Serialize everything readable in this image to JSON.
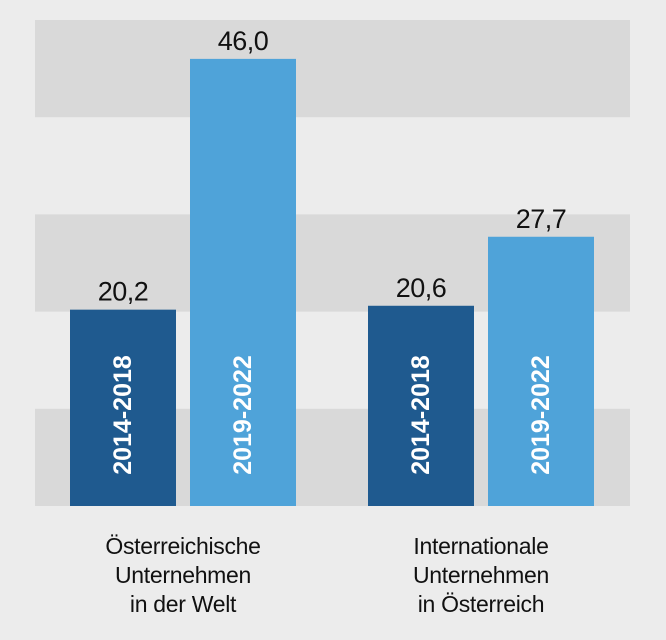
{
  "chart_data": {
    "type": "bar",
    "categories": [
      [
        "Österreichische",
        "Unternehmen",
        "in der Welt"
      ],
      [
        "Internationale",
        "Unternehmen",
        "in Österreich"
      ]
    ],
    "series": [
      {
        "name": "2014-2018",
        "values": [
          20.2,
          20.6
        ]
      },
      {
        "name": "2019-2022",
        "values": [
          46.0,
          27.7
        ]
      }
    ],
    "value_labels": [
      [
        "20,2",
        "20,6"
      ],
      [
        "46,0",
        "27,7"
      ]
    ],
    "ylim": [
      0,
      50
    ],
    "grid": "alternating horizontal bands",
    "title": "",
    "xlabel": "",
    "ylabel": ""
  },
  "colors": {
    "background": "#ececec",
    "band": "#d9d9d9",
    "series": [
      "#1f5a8f",
      "#4fa3d9"
    ],
    "label_inside": "#ffffff",
    "text": "#111111"
  }
}
